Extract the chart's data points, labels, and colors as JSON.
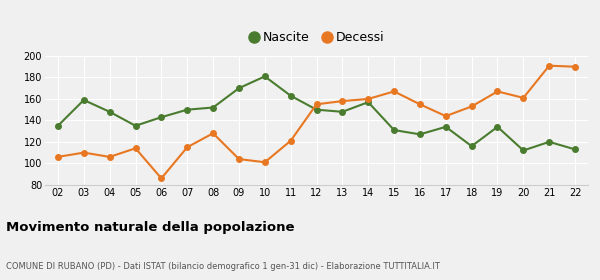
{
  "years": [
    "02",
    "03",
    "04",
    "05",
    "06",
    "07",
    "08",
    "09",
    "10",
    "11",
    "12",
    "13",
    "14",
    "15",
    "16",
    "17",
    "18",
    "19",
    "20",
    "21",
    "22"
  ],
  "nascite": [
    135,
    159,
    148,
    135,
    143,
    150,
    152,
    170,
    181,
    163,
    150,
    148,
    157,
    131,
    127,
    134,
    116,
    134,
    112,
    120,
    113
  ],
  "decessi": [
    106,
    110,
    106,
    114,
    86,
    115,
    128,
    104,
    101,
    121,
    155,
    158,
    160,
    167,
    155,
    144,
    153,
    167,
    161,
    191,
    190
  ],
  "nascite_color": "#4a7c2f",
  "decessi_color": "#e87722",
  "bg_color": "#f0f0f0",
  "grid_color": "#ffffff",
  "ylim": [
    80,
    200
  ],
  "yticks": [
    80,
    100,
    120,
    140,
    160,
    180,
    200
  ],
  "title": "Movimento naturale della popolazione",
  "subtitle": "COMUNE DI RUBANO (PD) - Dati ISTAT (bilancio demografico 1 gen-31 dic) - Elaborazione TUTTITALIA.IT",
  "legend_nascite": "Nascite",
  "legend_decessi": "Decessi",
  "marker_size": 4,
  "line_width": 1.5
}
